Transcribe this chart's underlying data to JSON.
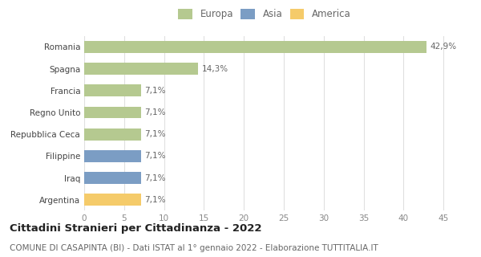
{
  "categories": [
    "Romania",
    "Spagna",
    "Francia",
    "Regno Unito",
    "Repubblica Ceca",
    "Filippine",
    "Iraq",
    "Argentina"
  ],
  "values": [
    42.9,
    14.3,
    7.1,
    7.1,
    7.1,
    7.1,
    7.1,
    7.1
  ],
  "labels": [
    "42,9%",
    "14,3%",
    "7,1%",
    "7,1%",
    "7,1%",
    "7,1%",
    "7,1%",
    "7,1%"
  ],
  "colors": [
    "#b5c990",
    "#b5c990",
    "#b5c990",
    "#b5c990",
    "#b5c990",
    "#7b9dc4",
    "#7b9dc4",
    "#f5cb6a"
  ],
  "legend_labels": [
    "Europa",
    "Asia",
    "America"
  ],
  "legend_colors": [
    "#b5c990",
    "#7b9dc4",
    "#f5cb6a"
  ],
  "xlim": [
    0,
    47
  ],
  "xticks": [
    0,
    5,
    10,
    15,
    20,
    25,
    30,
    35,
    40,
    45
  ],
  "title": "Cittadini Stranieri per Cittadinanza - 2022",
  "subtitle": "COMUNE DI CASAPINTA (BI) - Dati ISTAT al 1° gennaio 2022 - Elaborazione TUTTITALIA.IT",
  "bg_color": "#ffffff",
  "grid_color": "#e0e0e0",
  "bar_height": 0.55,
  "label_fontsize": 7.5,
  "title_fontsize": 9.5,
  "subtitle_fontsize": 7.5,
  "ytick_fontsize": 7.5,
  "xtick_fontsize": 7.5,
  "legend_fontsize": 8.5
}
